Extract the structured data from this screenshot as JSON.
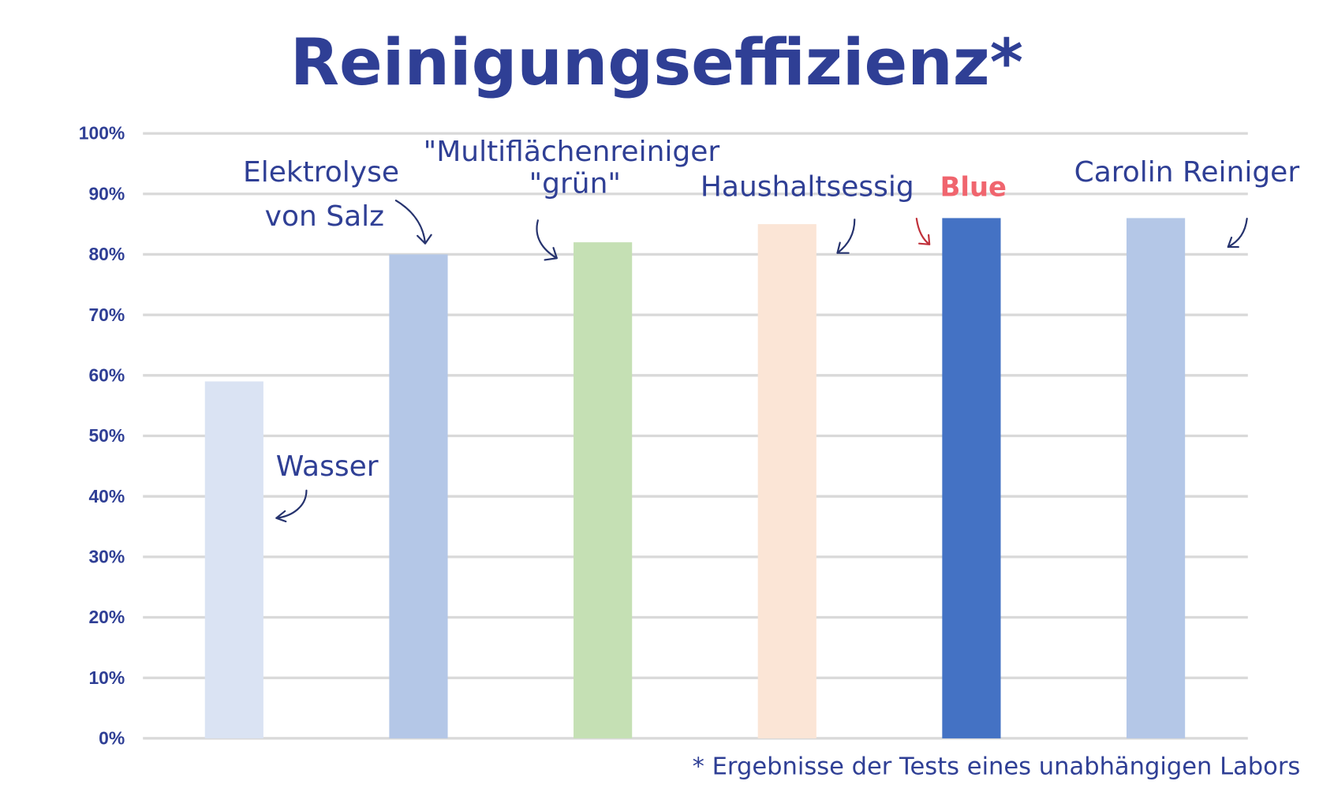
{
  "chart_data": {
    "type": "bar",
    "title": "Reinigungseffizienz*",
    "xlabel": "",
    "ylabel": "",
    "ylim": [
      0,
      100
    ],
    "yticks": [
      "0%",
      "10%",
      "20%",
      "30%",
      "40%",
      "50%",
      "60%",
      "70%",
      "80%",
      "90%",
      "100%"
    ],
    "grid": true,
    "categories": [
      "Wasser",
      "Elektrolyse von Salz",
      "\"Multiflächenreiniger \"grün\"",
      "Haushaltsessig",
      "Blue",
      "Carolin Reiniger"
    ],
    "values": [
      59,
      80,
      82,
      85,
      86,
      86
    ],
    "colors": [
      "#dae3f3",
      "#b4c7e7",
      "#c5e0b4",
      "#fbe5d6",
      "#4472c4",
      "#b4c7e7"
    ],
    "annotations": {
      "wasser": "Wasser",
      "elektrolyse_1": "Elektrolyse",
      "elektrolyse_2": "von Salz",
      "multi_1": "\"Multiflächenreiniger",
      "multi_2": "\"grün\"",
      "haushalt": "Haushaltsessig",
      "blue": "Blue",
      "carolin": "Carolin Reiniger"
    },
    "footnote": "* Ergebnisse der Tests eines unabhängigen Labors",
    "highlight_color": "#f0656e"
  }
}
